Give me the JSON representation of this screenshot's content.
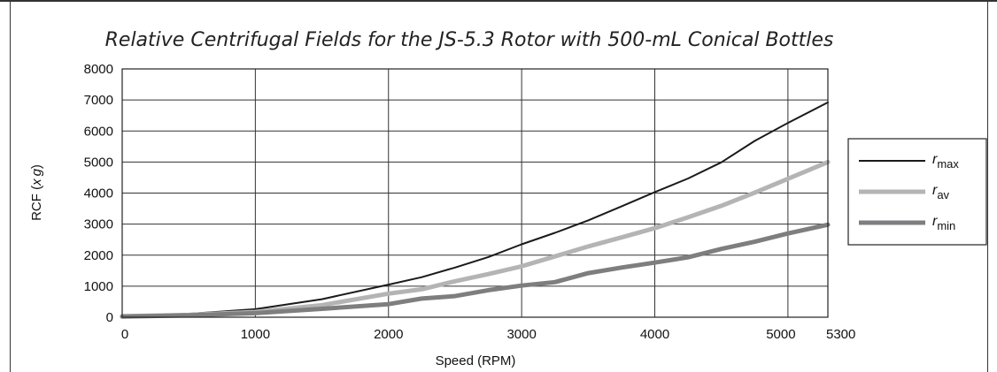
{
  "chart_data": {
    "type": "line",
    "title": "Relative Centrifugal Fields for the JS-5.3 Rotor with 500-mL Conical Bottles",
    "xlabel": "Speed (RPM)",
    "ylabel_main": "RCF (",
    "ylabel_x": "x",
    "ylabel_g": "g",
    "ylabel_close": ")",
    "xlim": [
      0,
      5300
    ],
    "ylim": [
      0,
      8000
    ],
    "xticks": [
      0,
      1000,
      2000,
      3000,
      4000,
      5000,
      5300
    ],
    "yticks": [
      0,
      1000,
      2000,
      3000,
      4000,
      5000,
      6000,
      7000,
      8000
    ],
    "grid": true,
    "legend_position": "right",
    "series": [
      {
        "name": "r",
        "sub": "max",
        "color": "#1a1a1a",
        "width": 2,
        "x": [
          0,
          500,
          1000,
          1500,
          2000,
          2250,
          2500,
          2750,
          3000,
          3250,
          3500,
          3750,
          4000,
          4250,
          4500,
          4750,
          5000,
          5300
        ],
        "y": [
          40,
          110,
          260,
          580,
          1050,
          1290,
          1600,
          1940,
          2350,
          2720,
          3120,
          3570,
          4030,
          4470,
          4990,
          5680,
          6260,
          6920
        ]
      },
      {
        "name": "r",
        "sub": "av",
        "color": "#b4b4b4",
        "width": 5,
        "x": [
          0,
          500,
          1000,
          1500,
          2000,
          2250,
          2500,
          2750,
          3000,
          3250,
          3500,
          3750,
          4000,
          4250,
          4500,
          4750,
          5000,
          5300
        ],
        "y": [
          30,
          75,
          170,
          390,
          760,
          900,
          1160,
          1390,
          1640,
          1960,
          2280,
          2570,
          2870,
          3220,
          3590,
          4010,
          4460,
          5000
        ]
      },
      {
        "name": "r",
        "sub": "min",
        "color": "#7e7e80",
        "width": 5,
        "x": [
          0,
          500,
          1000,
          1500,
          2000,
          2250,
          2500,
          2750,
          3000,
          3250,
          3500,
          3750,
          4000,
          4250,
          4500,
          4750,
          5000,
          5300
        ],
        "y": [
          20,
          60,
          130,
          270,
          420,
          600,
          680,
          870,
          1020,
          1130,
          1420,
          1600,
          1760,
          1930,
          2200,
          2430,
          2700,
          2980
        ]
      }
    ]
  }
}
